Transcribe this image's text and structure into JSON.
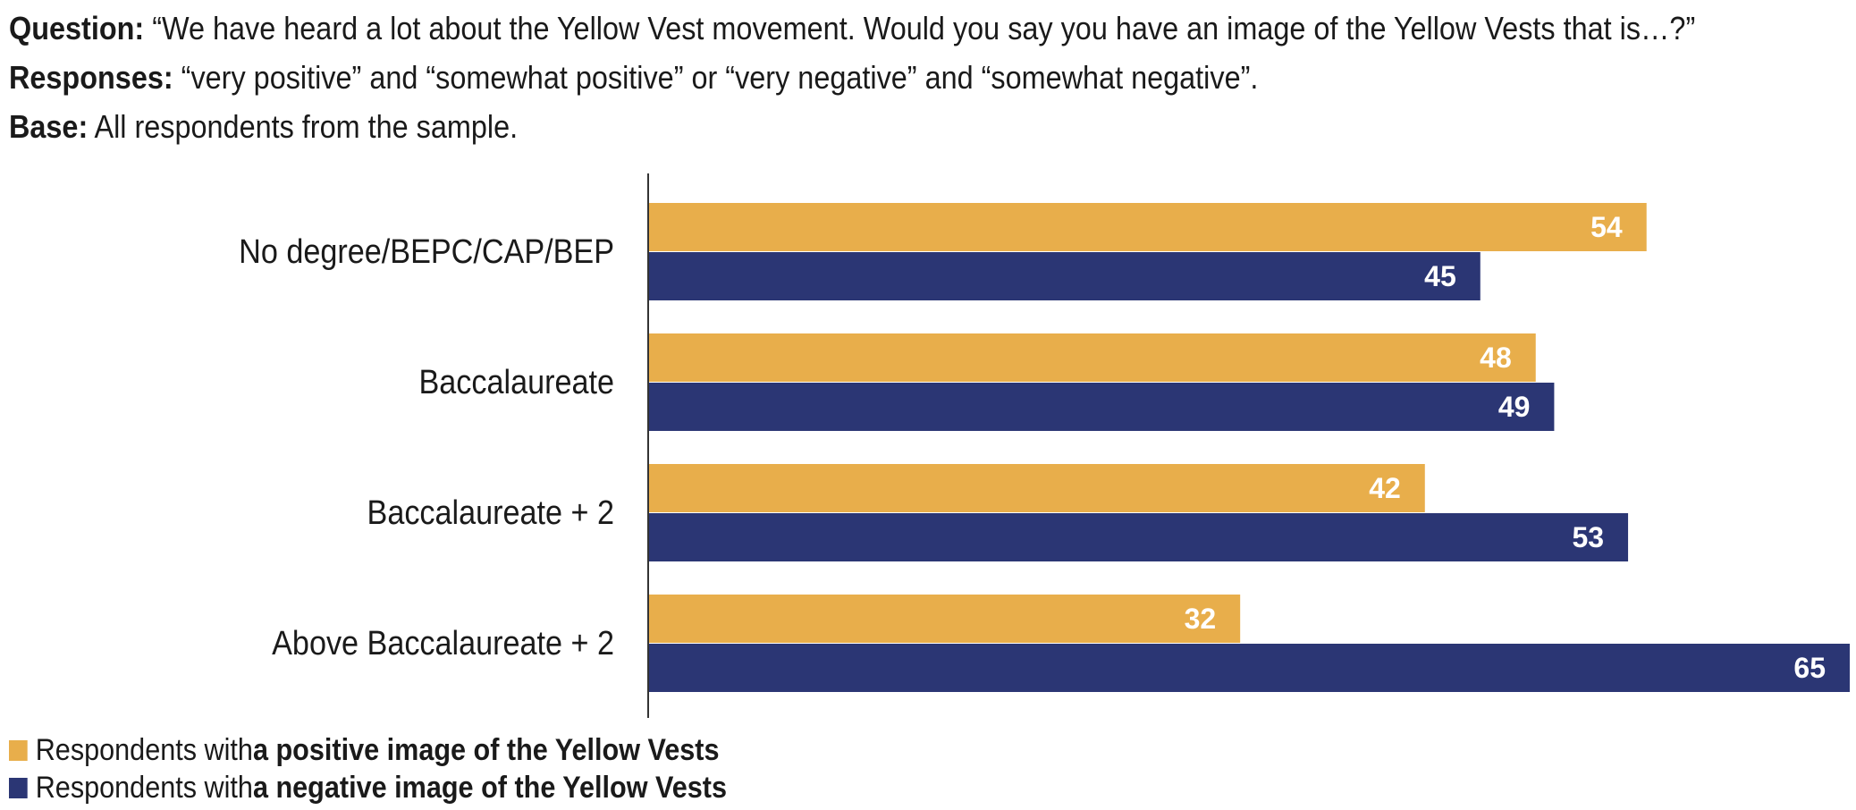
{
  "header": {
    "question_label": "Question:",
    "question_text": " “We have heard a lot about the Yellow Vest movement. Would you say you have an image of the Yellow Vests that is…?”",
    "responses_label": "Responses:",
    "responses_text": " “very positive” and “somewhat positive” or “very negative” and “somewhat negative”.",
    "base_label": "Base:",
    "base_text": " All respondents from the sample."
  },
  "colors": {
    "positive": "#E8AE4B",
    "negative": "#2B3674",
    "axis": "#333333"
  },
  "legend": {
    "positive_prefix": "Respondents with ",
    "positive_bold": "a positive image of the Yellow Vests",
    "negative_prefix": "Respondents with ",
    "negative_bold": "a negative image of the Yellow Vests"
  },
  "chart_data": {
    "type": "bar",
    "orientation": "horizontal",
    "categories": [
      "No degree/BEPC/CAP/BEP",
      "Baccalaureate",
      "Baccalaureate + 2",
      "Above Baccalaureate + 2"
    ],
    "series": [
      {
        "name": "Respondents with a positive image of the Yellow Vests",
        "values": [
          54,
          48,
          42,
          32
        ]
      },
      {
        "name": "Respondents with a negative image of the Yellow Vests",
        "values": [
          45,
          49,
          53,
          65
        ]
      }
    ],
    "xlim": [
      0,
      65
    ],
    "grid": false,
    "legend_position": "bottom-left",
    "data_labels": true
  }
}
